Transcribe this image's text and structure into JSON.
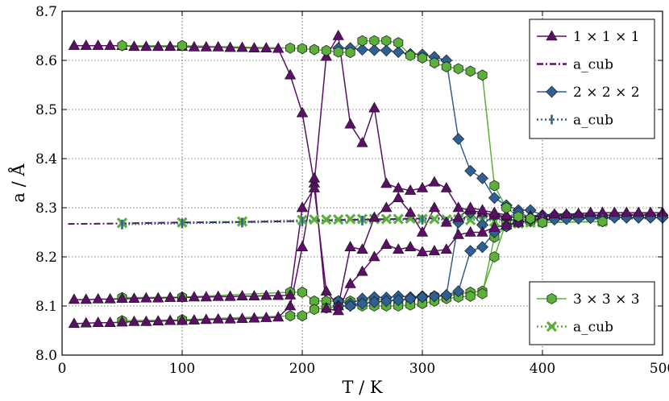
{
  "chart_data": {
    "type": "scatter",
    "title": "",
    "xlabel": "T / K",
    "ylabel": "a / Å",
    "xlim": [
      0,
      500
    ],
    "ylim": [
      8.0,
      8.7
    ],
    "xticks": [
      0,
      100,
      200,
      300,
      400,
      500
    ],
    "yticks": [
      8.0,
      8.1,
      8.2,
      8.3,
      8.4,
      8.5,
      8.6,
      8.7
    ],
    "xtick_labels": [
      "0",
      "100",
      "200",
      "300",
      "400",
      "500"
    ],
    "ytick_labels": [
      "8.0",
      "8.1",
      "8.2",
      "8.3",
      "8.4",
      "8.5",
      "8.6",
      "8.7"
    ],
    "grid": true,
    "colors": {
      "purple": "#5b0f66",
      "blue": "#2f5f93",
      "green": "#5bb03a",
      "green_dark": "#2a7a1a"
    },
    "legends": [
      {
        "placement": "top-right",
        "entries": [
          {
            "label": "1 × 1 × 1",
            "marker": "triangle",
            "color": "#5b0f66",
            "line": "solid"
          },
          {
            "label": "a_cub",
            "marker": "none",
            "color": "#5b0f66",
            "line": "dashdot"
          },
          {
            "label": "2 × 2 × 2",
            "marker": "diamond",
            "color": "#2f5f93",
            "line": "solid"
          },
          {
            "label": "a_cub",
            "marker": "vline",
            "color": "#2f5f93",
            "line": "dotted"
          }
        ]
      },
      {
        "placement": "bottom-right",
        "entries": [
          {
            "label": "3 × 3 × 3",
            "marker": "hexagon",
            "color": "#5bb03a",
            "line": "solid"
          },
          {
            "label": "a_cub",
            "marker": "x",
            "color": "#5bb03a",
            "line": "dotted"
          }
        ]
      }
    ],
    "series": [
      {
        "name": "1x1x1 a",
        "marker": "triangle",
        "color": "#5b0f66",
        "line": "solid",
        "x": [
          10,
          20,
          30,
          40,
          50,
          60,
          70,
          80,
          90,
          100,
          110,
          120,
          130,
          140,
          150,
          160,
          170,
          180,
          190,
          200,
          210,
          220,
          230,
          240,
          250,
          260,
          270,
          280,
          290,
          300,
          310,
          320,
          330,
          340,
          350,
          360,
          370,
          380,
          390,
          400,
          410,
          420,
          430,
          440,
          450,
          460,
          470,
          480,
          490,
          500
        ],
        "y": [
          8.63,
          8.63,
          8.63,
          8.63,
          8.63,
          8.628,
          8.628,
          8.628,
          8.628,
          8.628,
          8.627,
          8.627,
          8.627,
          8.626,
          8.626,
          8.625,
          8.625,
          8.624,
          8.57,
          8.493,
          8.35,
          8.608,
          8.65,
          8.47,
          8.432,
          8.503,
          8.349,
          8.34,
          8.335,
          8.34,
          8.352,
          8.34,
          8.3,
          8.295,
          8.29,
          8.285,
          8.282,
          8.28,
          8.283,
          8.285,
          8.287,
          8.287,
          8.288,
          8.29,
          8.29,
          8.29,
          8.29,
          8.29,
          8.29,
          8.29
        ]
      },
      {
        "name": "1x1x1 b",
        "marker": "triangle",
        "color": "#5b0f66",
        "line": "solid",
        "x": [
          10,
          20,
          30,
          40,
          50,
          60,
          70,
          80,
          90,
          100,
          110,
          120,
          130,
          140,
          150,
          160,
          170,
          180,
          190,
          200,
          210,
          220,
          230,
          240,
          250,
          260,
          270,
          280,
          290,
          300,
          310,
          320,
          330,
          340,
          350,
          360,
          370
        ],
        "y": [
          8.113,
          8.113,
          8.114,
          8.114,
          8.115,
          8.115,
          8.116,
          8.116,
          8.117,
          8.117,
          8.118,
          8.118,
          8.119,
          8.119,
          8.12,
          8.12,
          8.121,
          8.121,
          8.122,
          8.3,
          8.34,
          8.13,
          8.1,
          8.22,
          8.215,
          8.28,
          8.3,
          8.32,
          8.29,
          8.25,
          8.3,
          8.27,
          8.28,
          8.3,
          8.295,
          8.29,
          8.285
        ]
      },
      {
        "name": "1x1x1 c",
        "marker": "triangle",
        "color": "#5b0f66",
        "line": "solid",
        "x": [
          10,
          20,
          30,
          40,
          50,
          60,
          70,
          80,
          90,
          100,
          110,
          120,
          130,
          140,
          150,
          160,
          170,
          180,
          190,
          200,
          210,
          220,
          230,
          240,
          250,
          260,
          270,
          280,
          290,
          300,
          310,
          320,
          330,
          340,
          350,
          360,
          370,
          380
        ],
        "y": [
          8.064,
          8.065,
          8.066,
          8.066,
          8.067,
          8.068,
          8.068,
          8.069,
          8.07,
          8.07,
          8.071,
          8.072,
          8.073,
          8.073,
          8.074,
          8.075,
          8.076,
          8.077,
          8.1,
          8.22,
          8.36,
          8.095,
          8.09,
          8.145,
          8.17,
          8.2,
          8.225,
          8.215,
          8.22,
          8.21,
          8.212,
          8.215,
          8.245,
          8.25,
          8.25,
          8.26,
          8.265,
          8.27
        ]
      },
      {
        "name": "1x1x1 a_cub",
        "marker": "none",
        "color": "#5b0f66",
        "line": "dashdot",
        "x": [
          5,
          50,
          100,
          150,
          200,
          250,
          300,
          350,
          400,
          450,
          500
        ],
        "y": [
          8.267,
          8.268,
          8.27,
          8.271,
          8.273,
          8.276,
          8.278,
          8.28,
          8.282,
          8.285,
          8.287
        ]
      },
      {
        "name": "2x2x2 a",
        "marker": "diamond",
        "color": "#2f5f93",
        "line": "solid",
        "x": [
          230,
          240,
          250,
          260,
          270,
          280,
          290,
          300,
          310,
          320,
          330,
          340,
          350,
          360,
          370,
          380,
          390,
          400,
          410,
          420,
          430,
          440,
          450,
          460,
          470,
          480,
          490,
          500
        ],
        "y": [
          8.625,
          8.625,
          8.622,
          8.621,
          8.62,
          8.617,
          8.613,
          8.612,
          8.607,
          8.6,
          8.44,
          8.375,
          8.36,
          8.32,
          8.305,
          8.295,
          8.295,
          8.285,
          8.285,
          8.285,
          8.285,
          8.285,
          8.285,
          8.285,
          8.285,
          8.285,
          8.285,
          8.285
        ]
      },
      {
        "name": "2x2x2 b",
        "marker": "diamond",
        "color": "#2f5f93",
        "line": "solid",
        "x": [
          230,
          240,
          250,
          260,
          270,
          280,
          290,
          300,
          310,
          320,
          330,
          340,
          350,
          360,
          370,
          380,
          390,
          400,
          410,
          420,
          430,
          440,
          450,
          460,
          470,
          480,
          490,
          500
        ],
        "y": [
          8.11,
          8.105,
          8.115,
          8.118,
          8.117,
          8.12,
          8.118,
          8.12,
          8.12,
          8.122,
          8.27,
          8.29,
          8.265,
          8.285,
          8.28,
          8.29,
          8.28,
          8.275,
          8.278,
          8.28,
          8.28,
          8.28,
          8.28,
          8.28,
          8.28,
          8.28,
          8.28,
          8.28
        ]
      },
      {
        "name": "2x2x2 c",
        "marker": "diamond",
        "color": "#2f5f93",
        "line": "solid",
        "x": [
          230,
          240,
          250,
          260,
          270,
          280,
          290,
          300,
          310,
          320,
          330,
          340,
          350,
          360,
          370,
          380,
          390,
          400,
          410,
          420,
          430,
          440,
          450,
          460,
          470,
          480,
          490,
          500
        ],
        "y": [
          8.1,
          8.1,
          8.105,
          8.108,
          8.11,
          8.112,
          8.115,
          8.118,
          8.12,
          8.122,
          8.13,
          8.212,
          8.22,
          8.25,
          8.262,
          8.27,
          8.275,
          8.275,
          8.276,
          8.277,
          8.278,
          8.279,
          8.279,
          8.28,
          8.28,
          8.28,
          8.28,
          8.28
        ]
      },
      {
        "name": "2x2x2 a_cub",
        "marker": "vline",
        "color": "#2f5f93",
        "line": "dotted",
        "x": [
          50,
          100,
          150,
          200,
          250,
          300,
          350,
          400,
          450,
          500
        ],
        "y": [
          8.266,
          8.268,
          8.27,
          8.272,
          8.274,
          8.276,
          8.276,
          8.275,
          8.277,
          8.278
        ]
      },
      {
        "name": "3x3x3 a",
        "marker": "hexagon",
        "color": "#5bb03a",
        "line": "solid",
        "x": [
          50,
          100,
          190,
          200,
          210,
          220,
          230,
          240,
          250,
          260,
          270,
          280,
          290,
          300,
          310,
          320,
          330,
          340,
          350,
          360,
          370,
          380,
          390,
          400,
          450
        ],
        "y": [
          8.63,
          8.63,
          8.625,
          8.624,
          8.622,
          8.62,
          8.617,
          8.616,
          8.64,
          8.64,
          8.64,
          8.636,
          8.61,
          8.605,
          8.595,
          8.587,
          8.583,
          8.578,
          8.57,
          8.345,
          8.3,
          8.282,
          8.278,
          8.27,
          8.272
        ]
      },
      {
        "name": "3x3x3 b",
        "marker": "hexagon",
        "color": "#5bb03a",
        "line": "solid",
        "x": [
          50,
          100,
          190,
          200,
          210,
          220,
          230,
          240,
          250,
          260,
          270,
          280,
          290,
          300,
          310,
          320,
          330,
          340,
          350,
          360,
          370,
          380,
          390,
          400,
          450
        ],
        "y": [
          8.117,
          8.118,
          8.128,
          8.128,
          8.11,
          8.11,
          8.11,
          8.11,
          8.11,
          8.115,
          8.112,
          8.11,
          8.115,
          8.118,
          8.12,
          8.12,
          8.125,
          8.128,
          8.13,
          8.2,
          8.272,
          8.278,
          8.275,
          8.27,
          8.272
        ]
      },
      {
        "name": "3x3x3 c",
        "marker": "hexagon",
        "color": "#5bb03a",
        "line": "solid",
        "x": [
          50,
          100,
          190,
          200,
          210,
          220,
          230,
          240,
          250,
          260,
          270,
          280,
          290,
          300,
          310,
          320,
          330,
          340,
          350,
          360,
          370,
          380,
          390,
          400,
          450
        ],
        "y": [
          8.07,
          8.072,
          8.08,
          8.08,
          8.093,
          8.096,
          8.099,
          8.101,
          8.1,
          8.1,
          8.1,
          8.1,
          8.102,
          8.105,
          8.11,
          8.115,
          8.118,
          8.12,
          8.125,
          8.24,
          8.262,
          8.27,
          8.272,
          8.27,
          8.272
        ]
      },
      {
        "name": "3x3x3 a_cub",
        "marker": "x",
        "color": "#5bb03a",
        "line": "dotted",
        "x": [
          50,
          100,
          150,
          200,
          210,
          220,
          230,
          240,
          250,
          260,
          270,
          280,
          290,
          300,
          310,
          320,
          330,
          340,
          350,
          360,
          370,
          380,
          390,
          400,
          450
        ],
        "y": [
          8.269,
          8.27,
          8.272,
          8.275,
          8.276,
          8.276,
          8.276,
          8.277,
          8.277,
          8.277,
          8.277,
          8.277,
          8.278,
          8.277,
          8.277,
          8.276,
          8.276,
          8.275,
          8.275,
          8.272,
          8.27,
          8.268,
          8.27,
          8.27,
          8.272
        ]
      }
    ]
  }
}
